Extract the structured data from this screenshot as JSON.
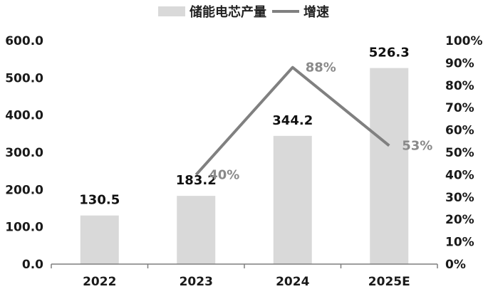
{
  "chart_data": {
    "type": "bar",
    "categories": [
      "2022",
      "2023",
      "2024",
      "2025E"
    ],
    "series": [
      {
        "name": "储能电芯产量",
        "type": "bar",
        "axis": "left",
        "values": [
          130.5,
          183.2,
          344.2,
          526.3
        ],
        "labels": [
          "130.5",
          "183.2",
          "344.2",
          "526.3"
        ]
      },
      {
        "name": "增速",
        "type": "line",
        "axis": "right",
        "values": [
          null,
          40,
          88,
          53
        ],
        "labels": [
          "",
          "40%",
          "88%",
          "53%"
        ]
      }
    ],
    "y_left": {
      "range": [
        0,
        600
      ],
      "ticks": [
        "0.0",
        "100.0",
        "200.0",
        "300.0",
        "400.0",
        "500.0",
        "600.0"
      ]
    },
    "y_right": {
      "range": [
        0,
        100
      ],
      "ticks": [
        "0%",
        "10%",
        "20%",
        "30%",
        "40%",
        "50%",
        "60%",
        "70%",
        "80%",
        "90%",
        "100%"
      ]
    },
    "grid": false,
    "legend_position": "top-center",
    "colors": {
      "bar": "#d9d9d9",
      "line": "#808080",
      "axis": "#7f7f7f"
    }
  }
}
